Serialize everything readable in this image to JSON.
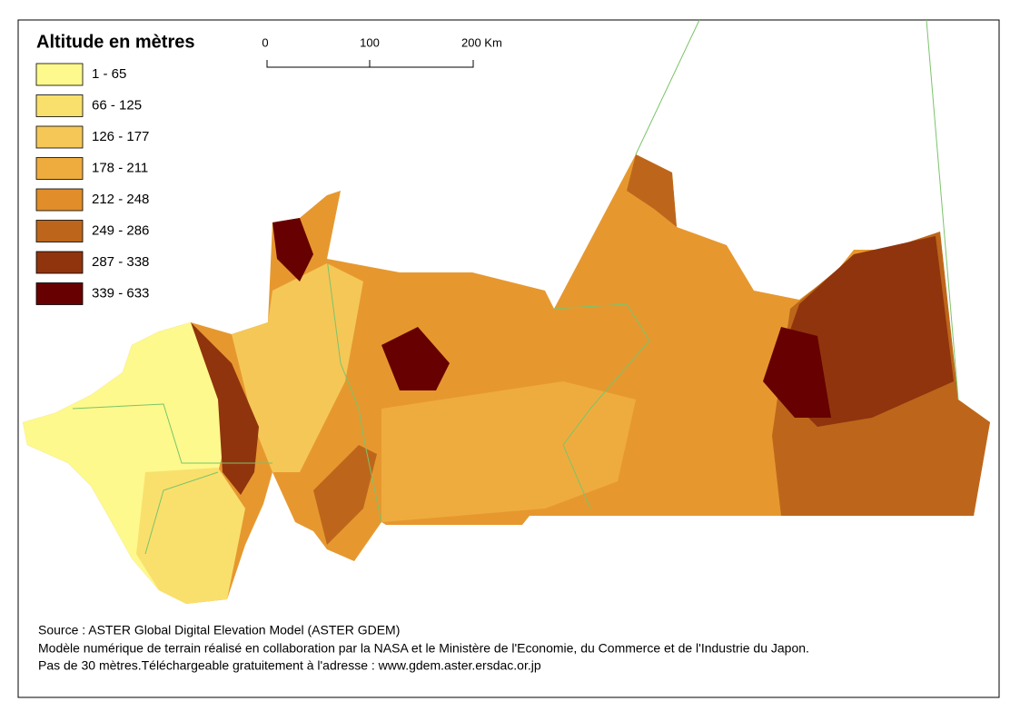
{
  "legend": {
    "title": "Altitude en mètres",
    "items": [
      {
        "label": "1 - 65",
        "color": "#fdf98c"
      },
      {
        "label": "66 - 125",
        "color": "#f9e06c"
      },
      {
        "label": "126 - 177",
        "color": "#f5c757"
      },
      {
        "label": "178 - 211",
        "color": "#efac3e"
      },
      {
        "label": "212 - 248",
        "color": "#e08d2a"
      },
      {
        "label": "249 - 286",
        "color": "#bd661b"
      },
      {
        "label": "287 - 338",
        "color": "#90340d"
      },
      {
        "label": "339 - 633",
        "color": "#670000"
      }
    ]
  },
  "scale_bar": {
    "labels": [
      "0",
      "100",
      "200 Km"
    ]
  },
  "source": {
    "lines": [
      "Source : ASTER Global Digital Elevation Model (ASTER GDEM)",
      "Modèle numérique de terrain réalisé en collaboration par la NASA et le Ministère de l'Economie, du Commerce et de l'Industrie du Japon.",
      "Pas de 30 mètres.Téléchargeable gratuitement à l'adresse : www.gdem.aster.ersdac.or.jp"
    ]
  }
}
